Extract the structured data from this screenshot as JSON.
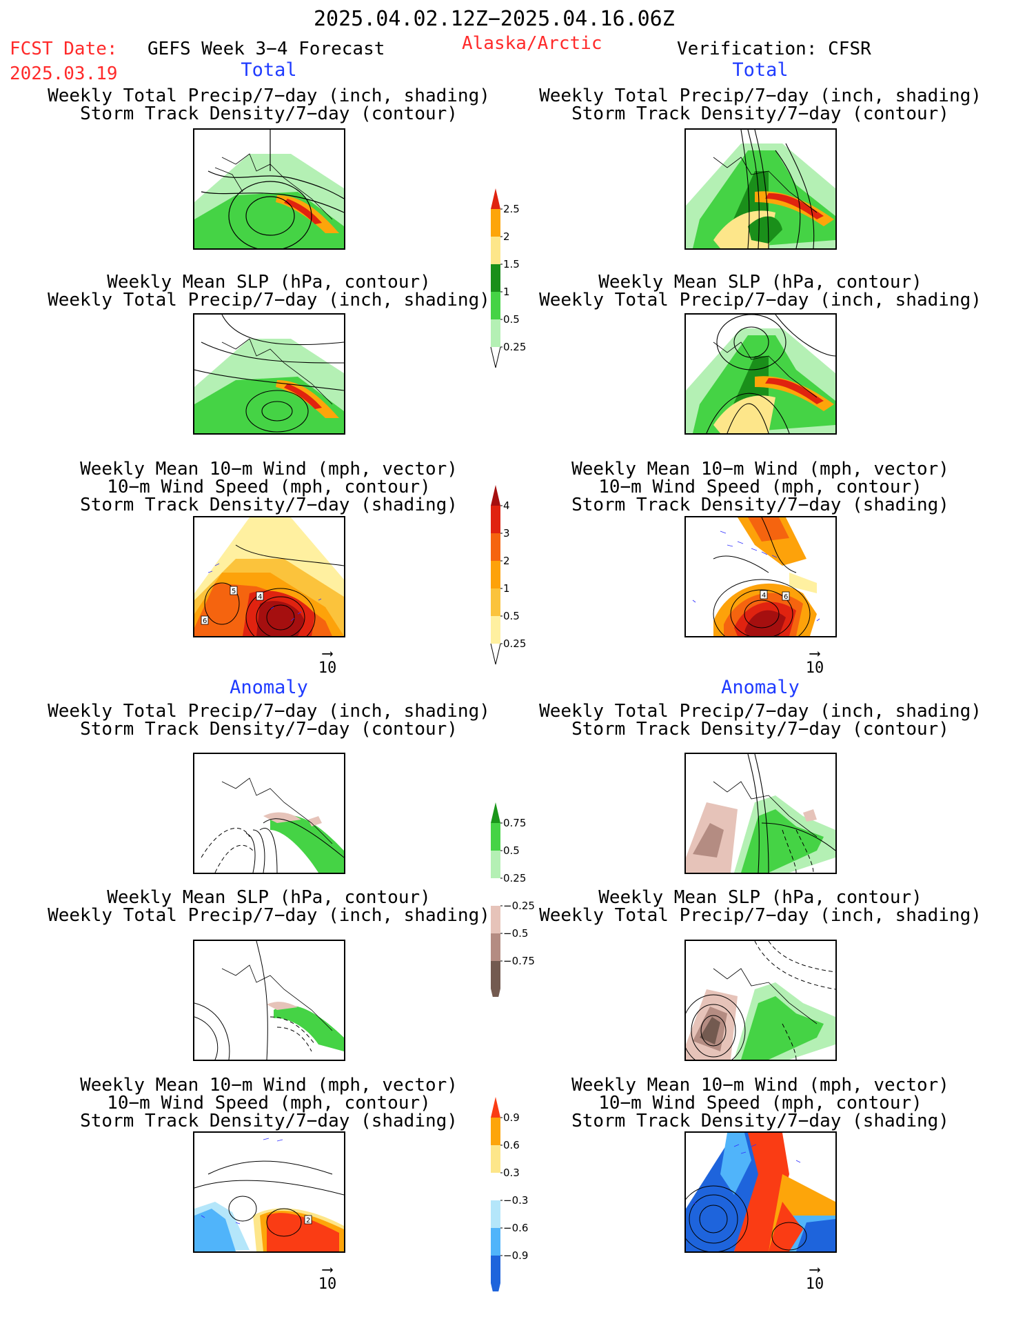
{
  "header": {
    "date_range": "2025.04.02.12Z−2025.04.16.06Z",
    "fcst_label": "FCST Date:",
    "fcst_date": "2025.03.19",
    "model": "GEFS Week 3−4 Forecast",
    "region": "Alaska/Arctic",
    "verification": "Verification: CFSR"
  },
  "sections": {
    "total_left": "Total",
    "total_right": "Total",
    "anomaly_left": "Anomaly",
    "anomaly_right": "Anomaly"
  },
  "panel_titles": {
    "precip_track": [
      "Weekly Total Precip/7−day (inch, shading)",
      "Storm Track Density/7−day (contour)"
    ],
    "slp_precip": [
      "Weekly Mean SLP (hPa, contour)",
      "Weekly Total Precip/7−day (inch, shading)"
    ],
    "wind_track": [
      "Weekly Mean 10−m Wind (mph, vector)",
      "10−m Wind Speed (mph, contour)",
      "Storm Track Density/7−day (shading)"
    ]
  },
  "vector_ref": "10",
  "colorbars": {
    "precip_total": {
      "labels": [
        "2.5",
        "2",
        "1.5",
        "1",
        "0.5",
        "0.25"
      ],
      "colors": [
        "#e0230f",
        "#fda50a",
        "#fde68a",
        "#1a8f1a",
        "#45d345",
        "#b4f0b4"
      ]
    },
    "track_total": {
      "labels": [
        "4",
        "3",
        "2",
        "1",
        "0.5",
        "0.25"
      ],
      "colors": [
        "#a50f0f",
        "#e02310",
        "#f5640f",
        "#fda20a",
        "#fbc33c",
        "#fff0a0"
      ]
    },
    "precip_anom": {
      "labels": [
        "0.75",
        "0.5",
        "0.25",
        "−0.25",
        "−0.5",
        "−0.75"
      ],
      "colors": [
        "#1a961a",
        "#45d345",
        "#b4f0b4",
        "#ffffff",
        "#e6c3b9",
        "#b48c82",
        "#735a50"
      ]
    },
    "track_anom": {
      "labels": [
        "0.9",
        "0.6",
        "0.3",
        "−0.3",
        "−0.6",
        "−0.9"
      ],
      "colors": [
        "#fa3c14",
        "#fda50a",
        "#fde68a",
        "#ffffff",
        "#b4e6fa",
        "#50b4fa",
        "#1e64dc"
      ]
    }
  }
}
